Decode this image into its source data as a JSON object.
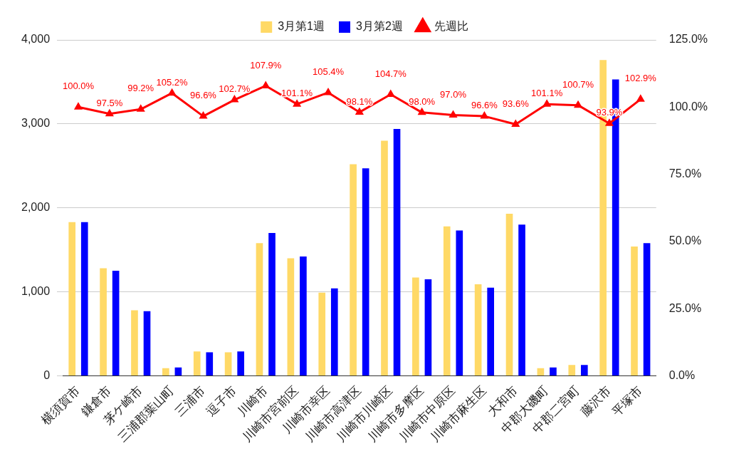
{
  "chart_data": {
    "type": "bar",
    "categories": [
      "横須賀市",
      "鎌倉市",
      "茅ケ崎市",
      "三浦郡葉山町",
      "三浦市",
      "逗子市",
      "川崎市",
      "川崎市宮前区",
      "川崎市幸区",
      "川崎市高津区",
      "川崎市川崎区",
      "川崎市多摩区",
      "川崎市中原区",
      "川崎市麻生区",
      "大和市",
      "中郡大磯町",
      "中郡二宮町",
      "藤沢市",
      "平塚市"
    ],
    "series": [
      {
        "name": "3月第1週",
        "color": "#ffd966",
        "values": [
          1830,
          1280,
          780,
          90,
          290,
          280,
          1580,
          1400,
          990,
          2520,
          2800,
          1170,
          1780,
          1090,
          1930,
          90,
          130,
          3760,
          1540
        ]
      },
      {
        "name": "3月第2週",
        "color": "#0000ff",
        "values": [
          1830,
          1250,
          770,
          100,
          280,
          290,
          1700,
          1420,
          1040,
          2470,
          2940,
          1150,
          1730,
          1050,
          1800,
          100,
          130,
          3530,
          1580
        ]
      },
      {
        "name": "先週比",
        "type": "line",
        "axis": "y2",
        "color": "#ff0000",
        "values": [
          100.0,
          97.5,
          99.2,
          105.2,
          96.6,
          102.7,
          107.9,
          101.1,
          105.4,
          98.1,
          104.7,
          98.0,
          97.0,
          96.6,
          93.6,
          101.1,
          100.7,
          93.9,
          102.9
        ],
        "value_labels": [
          "100.0%",
          "97.5%",
          "99.2%",
          "105.2%",
          "96.6%",
          "102.7%",
          "107.9%",
          "101.1%",
          "105.4%",
          "98.1%",
          "104.7%",
          "98.0%",
          "97.0%",
          "96.6%",
          "93.6%",
          "101.1%",
          "100.7%",
          "93.9%",
          "102.9%"
        ]
      }
    ],
    "ylim": [
      0,
      4000
    ],
    "yticks": [
      {
        "value": 0,
        "label": "0"
      },
      {
        "value": 1000,
        "label": "1,000"
      },
      {
        "value": 2000,
        "label": "2,000"
      },
      {
        "value": 3000,
        "label": "3,000"
      },
      {
        "value": 4000,
        "label": "4,000"
      }
    ],
    "y2lim": [
      0,
      125
    ],
    "y2ticks": [
      {
        "value": 0,
        "label": "0.0%"
      },
      {
        "value": 25,
        "label": "25.0%"
      },
      {
        "value": 50,
        "label": "50.0%"
      },
      {
        "value": 75,
        "label": "75.0%"
      },
      {
        "value": 100,
        "label": "100.0%"
      },
      {
        "value": 125,
        "label": "125.0%"
      }
    ],
    "grid": "y",
    "legend": "top",
    "marker": "triangle",
    "line_style": "solid"
  }
}
